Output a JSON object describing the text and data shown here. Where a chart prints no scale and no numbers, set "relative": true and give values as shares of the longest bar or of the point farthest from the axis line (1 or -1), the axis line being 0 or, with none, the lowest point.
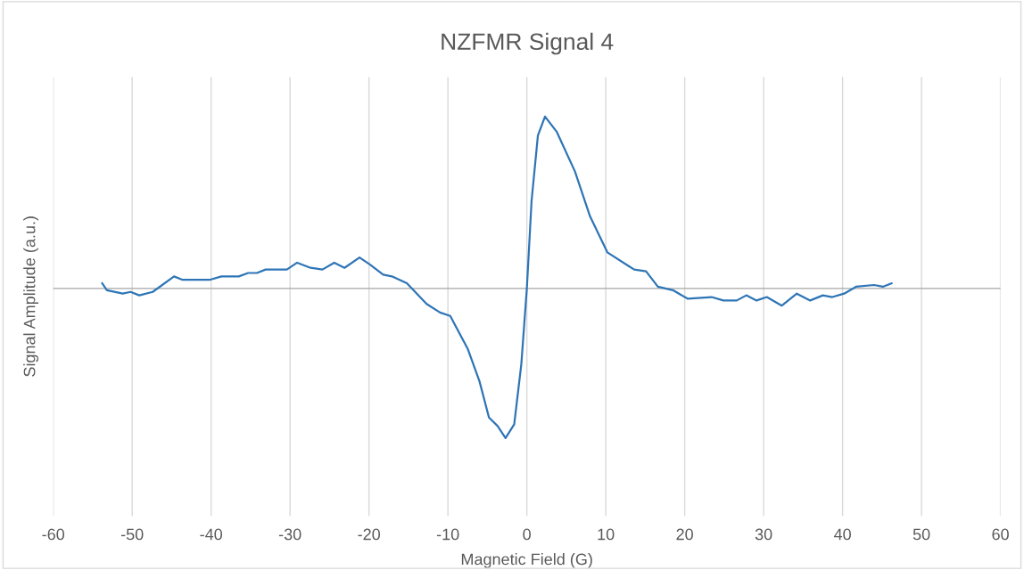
{
  "chart_data": {
    "type": "line",
    "title": "NZFMR Signal 4",
    "xlabel": "Magnetic Field (G)",
    "ylabel": "Signal Amplitude (a.u.)",
    "relative": true,
    "xlim": [
      -60,
      60
    ],
    "xticks": [
      -60,
      -50,
      -40,
      -30,
      -20,
      -10,
      0,
      10,
      20,
      30,
      40,
      50,
      60
    ],
    "grid": "x",
    "legend": false,
    "marker": "none",
    "line_style": "solid",
    "series": [
      {
        "color": "#2e75b6",
        "x": [
          -53.8,
          -53.2,
          -51.2,
          -50.2,
          -49.1,
          -47.4,
          -44.7,
          -43.6,
          -40.2,
          -38.7,
          -36.5,
          -35.3,
          -34.2,
          -33.1,
          -30.4,
          -29.1,
          -27.4,
          -25.9,
          -24.4,
          -23.1,
          -21.2,
          -19.9,
          -18.2,
          -17.1,
          -15.2,
          -12.7,
          -11.0,
          -9.7,
          -7.5,
          -6.0,
          -4.8,
          -3.7,
          -2.7,
          -1.6,
          -0.7,
          0,
          0.6,
          1.4,
          2.3,
          3.8,
          6.1,
          8.0,
          10.2,
          12.9,
          13.6,
          15.1,
          16.6,
          18.5,
          20.4,
          23.4,
          24.9,
          26.6,
          27.8,
          29.1,
          30.4,
          32.3,
          34.2,
          35.9,
          37.5,
          38.7,
          40.2,
          41.7,
          44.0,
          45.1,
          46.2
        ],
        "values": [
          0.03,
          -0.01,
          -0.03,
          -0.02,
          -0.04,
          -0.02,
          0.07,
          0.05,
          0.05,
          0.07,
          0.07,
          0.09,
          0.09,
          0.11,
          0.11,
          0.15,
          0.12,
          0.11,
          0.15,
          0.12,
          0.18,
          0.14,
          0.08,
          0.07,
          0.03,
          -0.09,
          -0.14,
          -0.16,
          -0.35,
          -0.54,
          -0.75,
          -0.8,
          -0.87,
          -0.79,
          -0.44,
          0,
          0.51,
          0.89,
          1.0,
          0.91,
          0.68,
          0.42,
          0.21,
          0.13,
          0.11,
          0.1,
          0.01,
          -0.01,
          -0.06,
          -0.05,
          -0.07,
          -0.07,
          -0.04,
          -0.07,
          -0.05,
          -0.1,
          -0.03,
          -0.07,
          -0.04,
          -0.05,
          -0.03,
          0.01,
          0.02,
          0.01,
          0.03
        ]
      }
    ]
  }
}
